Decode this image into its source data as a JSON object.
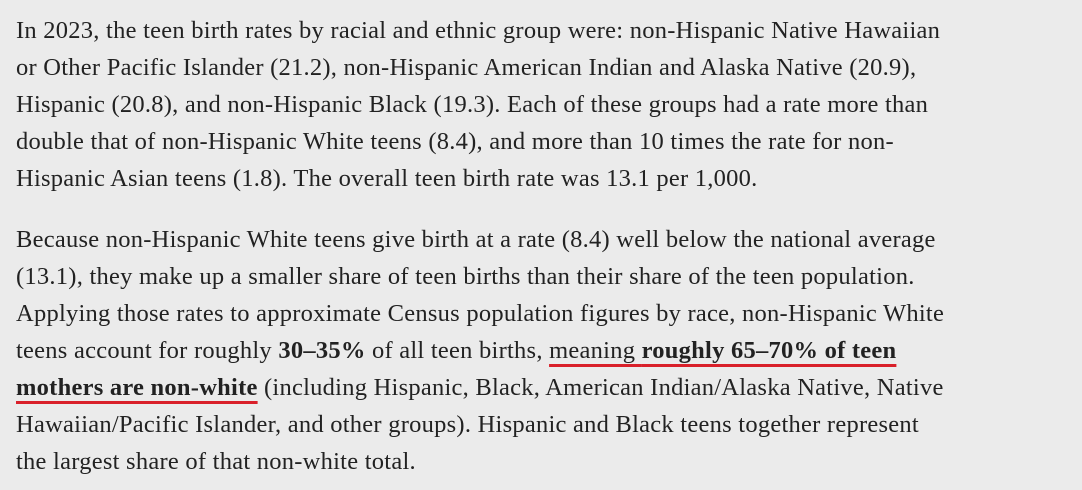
{
  "paragraphs": [
    {
      "lines": [
        [
          "In 2023, the teen birth rates by racial and ethnic group were: non-Hispanic Native Hawaiian"
        ],
        [
          "or Other Pacific Islander (21.2), non-Hispanic American Indian and Alaska Native (20.9),"
        ],
        [
          "Hispanic (20.8), and non-Hispanic Black (19.3). Each of these groups had a rate more than"
        ],
        [
          "double that of non-Hispanic White teens (8.4), and more than 10 times the rate for non-"
        ],
        [
          "Hispanic Asian teens (1.8). The overall teen birth rate was 13.1 per 1,000."
        ]
      ]
    },
    {
      "lines": [
        [
          "Because non-Hispanic White teens give birth at a rate (8.4) well below the national average"
        ],
        [
          "(13.1), they make up a smaller share of teen births than their share of the teen population."
        ],
        [
          "Applying those rates to approximate Census population figures by race, non-Hispanic White"
        ],
        [
          "teens account for roughly ",
          "30–35%",
          " of all teen births, ",
          "meaning ",
          "roughly 65–70% of teen"
        ],
        [
          "mothers are non-white",
          " (including Hispanic, Black, American Indian/Alaska Native, Native"
        ],
        [
          "Hawaiian/Pacific Islander, and other groups). Hispanic and Black teens together represent"
        ],
        [
          "the largest share of that non-white total."
        ]
      ]
    }
  ]
}
